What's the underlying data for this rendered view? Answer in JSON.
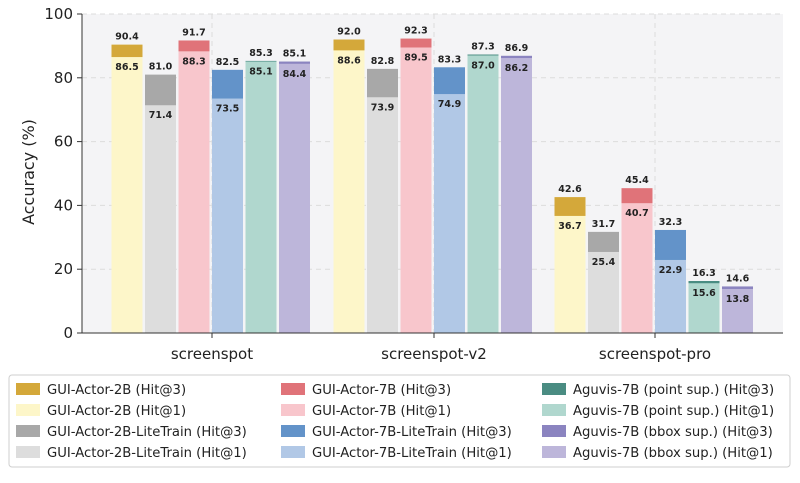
{
  "chart_data": {
    "type": "bar",
    "ylabel": "Accuracy (%)",
    "xlabel": "",
    "ylim": [
      0,
      100
    ],
    "yticks": [
      0,
      20,
      40,
      60,
      80,
      100
    ],
    "grid": true,
    "categories": [
      "screenspot",
      "screenspot-v2",
      "screenspot-pro"
    ],
    "series": [
      {
        "name": "GUI-Actor-2B",
        "hit1": [
          86.5,
          88.6,
          36.7
        ],
        "hit3": [
          90.4,
          92.0,
          42.6
        ],
        "color_hit1": "#fdf6c9",
        "color_hit3": "#d4a83a"
      },
      {
        "name": "GUI-Actor-2B-LiteTrain",
        "hit1": [
          71.4,
          73.9,
          25.4
        ],
        "hit3": [
          81.0,
          82.8,
          31.7
        ],
        "color_hit1": "#dddddd",
        "color_hit3": "#a8a8a8"
      },
      {
        "name": "GUI-Actor-7B",
        "hit1": [
          88.3,
          89.5,
          40.7
        ],
        "hit3": [
          91.7,
          92.3,
          45.4
        ],
        "color_hit1": "#f8c6cc",
        "color_hit3": "#e07379"
      },
      {
        "name": "GUI-Actor-7B-LiteTrain",
        "hit1": [
          73.5,
          74.9,
          22.9
        ],
        "hit3": [
          82.5,
          83.3,
          32.3
        ],
        "color_hit1": "#b1c8e6",
        "color_hit3": "#6393c9"
      },
      {
        "name": "Aguvis-7B (point sup.)",
        "hit1": [
          85.1,
          87.0,
          15.6
        ],
        "hit3": [
          85.3,
          87.3,
          16.3
        ],
        "color_hit1": "#b0d7ce",
        "color_hit3": "#4a8c82"
      },
      {
        "name": "Aguvis-7B (bbox sup.)",
        "hit1": [
          84.4,
          86.2,
          13.8
        ],
        "hit3": [
          85.1,
          86.9,
          14.6
        ],
        "color_hit1": "#bdb6da",
        "color_hit3": "#8b84c0"
      }
    ],
    "legend": {
      "placement": "bottom",
      "entries": [
        {
          "label": "GUI-Actor-2B (Hit@3)",
          "color": "#d4a83a"
        },
        {
          "label": "GUI-Actor-2B (Hit@1)",
          "color": "#fdf6c9"
        },
        {
          "label": "GUI-Actor-2B-LiteTrain (Hit@3)",
          "color": "#a8a8a8"
        },
        {
          "label": "GUI-Actor-2B-LiteTrain (Hit@1)",
          "color": "#dddddd"
        },
        {
          "label": "GUI-Actor-7B (Hit@3)",
          "color": "#e07379"
        },
        {
          "label": "GUI-Actor-7B (Hit@1)",
          "color": "#f8c6cc"
        },
        {
          "label": "GUI-Actor-7B-LiteTrain (Hit@3)",
          "color": "#6393c9"
        },
        {
          "label": "GUI-Actor-7B-LiteTrain (Hit@1)",
          "color": "#b1c8e6"
        },
        {
          "label": "Aguvis-7B (point sup.) (Hit@3)",
          "color": "#4a8c82"
        },
        {
          "label": "Aguvis-7B (point sup.) (Hit@1)",
          "color": "#b0d7ce"
        },
        {
          "label": "Aguvis-7B (bbox sup.) (Hit@3)",
          "color": "#8b84c0"
        },
        {
          "label": "Aguvis-7B (bbox sup.) (Hit@1)",
          "color": "#bdb6da"
        }
      ]
    }
  }
}
